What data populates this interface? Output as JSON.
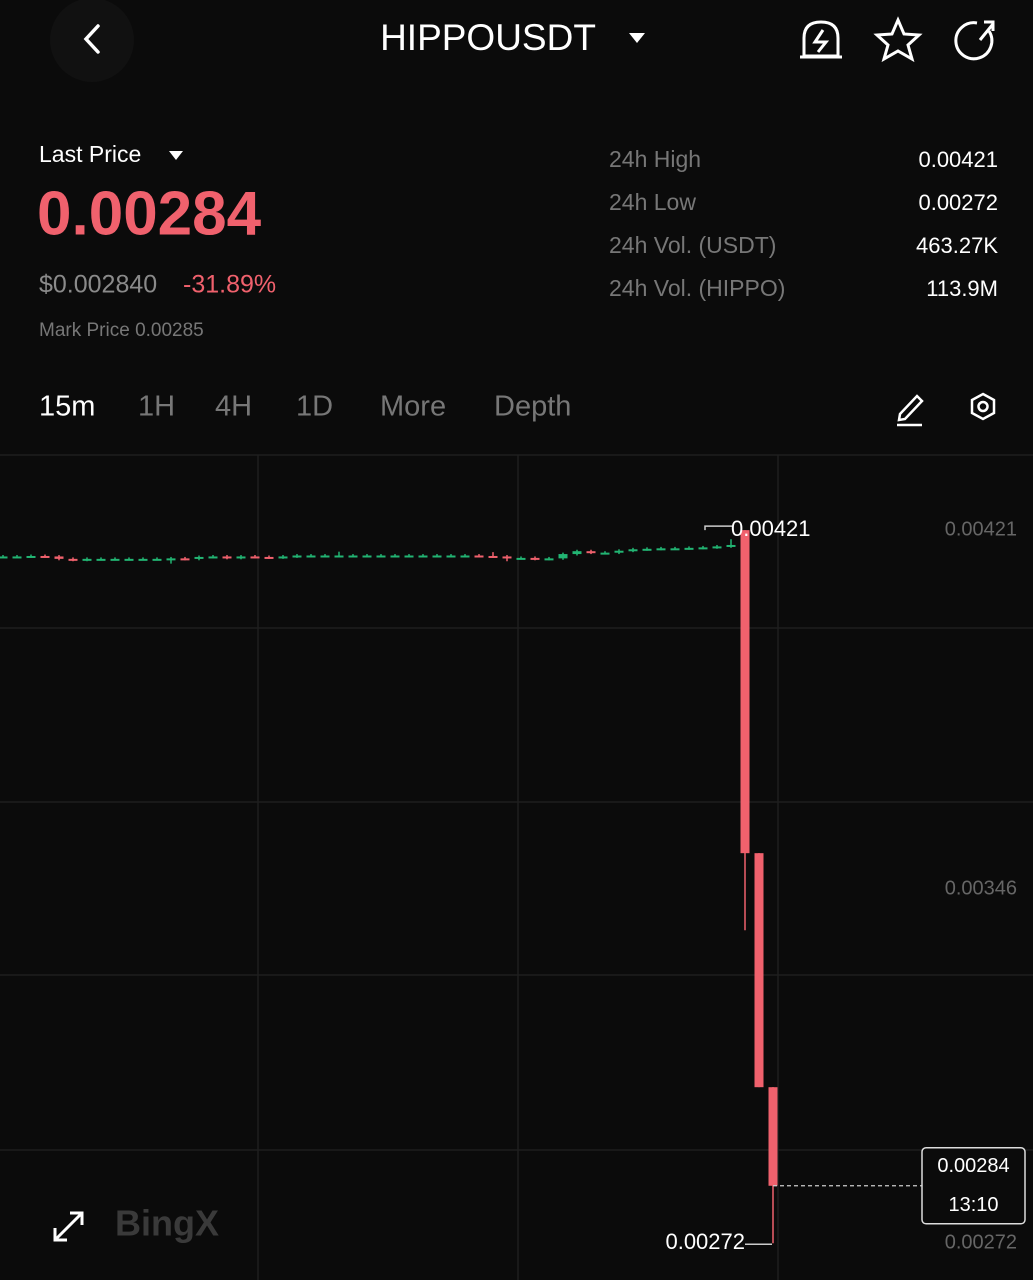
{
  "header": {
    "title": "HIPPOUSDT"
  },
  "ticker": {
    "label": "Last Price",
    "last_price": "0.00284",
    "usd_price": "$0.002840",
    "change": "-31.89%",
    "mark_price": "Mark Price 0.00285"
  },
  "stats": [
    {
      "label": "24h High",
      "value": "0.00421"
    },
    {
      "label": "24h Low",
      "value": "0.00272"
    },
    {
      "label": "24h Vol. (USDT)",
      "value": "463.27K"
    },
    {
      "label": "24h Vol. (HIPPO)",
      "value": "113.9M"
    }
  ],
  "tabs": [
    "15m",
    "1H",
    "4H",
    "1D",
    "More",
    "Depth"
  ],
  "watermark": "BingX",
  "chart_data": {
    "type": "candlestick",
    "up_color": "#22b573",
    "down_color": "#f0616d",
    "ylim": [
      0.002664,
      0.004367
    ],
    "yticks": [
      0.00421,
      0.00346,
      0.00272
    ],
    "open": [
      0.004155,
      0.004155,
      0.004155,
      0.004156,
      0.004155,
      0.00415,
      0.004148,
      0.00415,
      0.00415,
      0.00415,
      0.00415,
      0.00415,
      0.00415,
      0.004151,
      0.00415,
      0.004154,
      0.004155,
      0.004152,
      0.004155,
      0.004154,
      0.004153,
      0.004155,
      0.004157,
      0.004157,
      0.004157,
      0.004157,
      0.004157,
      0.004157,
      0.004157,
      0.004157,
      0.004157,
      0.004157,
      0.004157,
      0.004157,
      0.004157,
      0.004156,
      0.004155,
      0.004152,
      0.004152,
      0.00415,
      0.004151,
      0.00416,
      0.004166,
      0.004163,
      0.004163,
      0.004167,
      0.00417,
      0.004171,
      0.004172,
      0.004172,
      0.004173,
      0.004174,
      0.004176,
      0.00421,
      0.003535,
      0.003046
    ],
    "high": [
      0.004158,
      0.004158,
      0.004159,
      0.004159,
      0.004158,
      0.004153,
      0.004153,
      0.004153,
      0.004153,
      0.004153,
      0.004153,
      0.004153,
      0.004154,
      0.004154,
      0.004157,
      0.004158,
      0.004158,
      0.004158,
      0.004158,
      0.004157,
      0.004158,
      0.00416,
      0.00416,
      0.00416,
      0.004165,
      0.00416,
      0.00416,
      0.00416,
      0.00416,
      0.00416,
      0.00416,
      0.00416,
      0.00416,
      0.00416,
      0.00416,
      0.004164,
      0.004158,
      0.004155,
      0.004155,
      0.004154,
      0.004163,
      0.004169,
      0.004169,
      0.004166,
      0.00417,
      0.004173,
      0.004174,
      0.004175,
      0.004175,
      0.004176,
      0.004177,
      0.004179,
      0.004191,
      0.00421,
      0.003535,
      0.003046
    ],
    "low": [
      0.004152,
      0.004152,
      0.004152,
      0.004152,
      0.004147,
      0.004145,
      0.004145,
      0.004147,
      0.004147,
      0.004147,
      0.004147,
      0.004147,
      0.00414,
      0.004147,
      0.004147,
      0.004151,
      0.004149,
      0.004149,
      0.004151,
      0.00415,
      0.00415,
      0.004152,
      0.004154,
      0.004154,
      0.004154,
      0.004154,
      0.004154,
      0.004154,
      0.004154,
      0.004154,
      0.004154,
      0.004154,
      0.004154,
      0.004154,
      0.004153,
      0.004152,
      0.004145,
      0.004149,
      0.004147,
      0.004147,
      0.004148,
      0.004157,
      0.00416,
      0.00416,
      0.00416,
      0.004164,
      0.004167,
      0.004168,
      0.004169,
      0.004169,
      0.00417,
      0.004171,
      0.004173,
      0.003374,
      0.003046,
      0.00272
    ],
    "close": [
      0.004155,
      0.004155,
      0.004156,
      0.004155,
      0.00415,
      0.004148,
      0.00415,
      0.00415,
      0.00415,
      0.00415,
      0.00415,
      0.00415,
      0.004151,
      0.00415,
      0.004154,
      0.004155,
      0.004152,
      0.004155,
      0.004154,
      0.004153,
      0.004155,
      0.004157,
      0.004157,
      0.004157,
      0.004157,
      0.004157,
      0.004157,
      0.004157,
      0.004157,
      0.004157,
      0.004157,
      0.004157,
      0.004157,
      0.004157,
      0.004156,
      0.004155,
      0.004152,
      0.004152,
      0.00415,
      0.004151,
      0.00416,
      0.004166,
      0.004163,
      0.004163,
      0.004167,
      0.00417,
      0.004171,
      0.004172,
      0.004172,
      0.004173,
      0.004174,
      0.004176,
      0.004179,
      0.003535,
      0.003046,
      0.00284
    ],
    "annotations": {
      "high": 0.00421,
      "low": 0.00272,
      "last_price": 0.00284,
      "countdown": "13:10"
    }
  }
}
